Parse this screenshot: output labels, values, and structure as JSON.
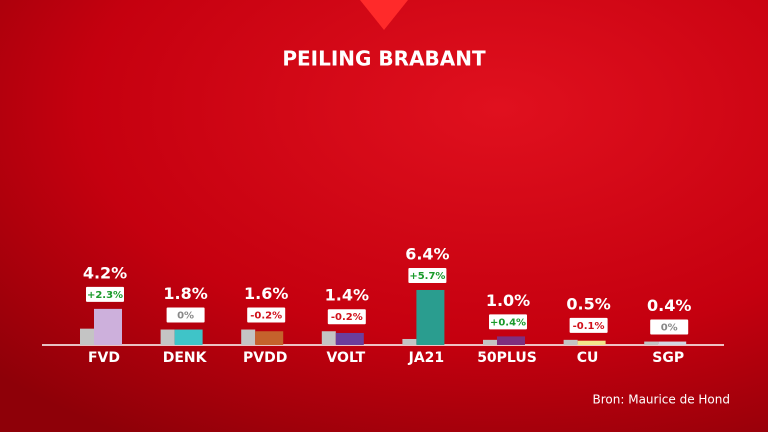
{
  "chart_data": {
    "type": "bar",
    "title": "PEILING BRABANT",
    "categories": [
      "FVD",
      "DENK",
      "PVDD",
      "VOLT",
      "JA21",
      "50PLUS",
      "CU",
      "SGP"
    ],
    "series": [
      {
        "color": "#c4c4c4",
        "values": [
          1.9,
          1.8,
          1.8,
          1.6,
          0.7,
          0.6,
          0.6,
          0.4
        ]
      },
      {
        "colors": [
          "#cdb0dc",
          "#3fc4c8",
          "#c5622c",
          "#6b3e9c",
          "#2a9d8f",
          "#7e2f7f",
          "#f3e68a",
          "#d4d6e2"
        ],
        "values": [
          4.2,
          1.8,
          1.6,
          1.4,
          6.4,
          1.0,
          0.5,
          0.4
        ],
        "value_labels": [
          "4.2%",
          "1.8%",
          "1.6%",
          "1.4%",
          "6.4%",
          "1.0%",
          "0.5%",
          "0.4%"
        ]
      }
    ],
    "changes": {
      "values": [
        2.3,
        0,
        -0.2,
        -0.2,
        5.7,
        0.4,
        -0.1,
        0
      ],
      "value_labels": [
        "+2.3%",
        "0%",
        "-0.2%",
        "-0.2%",
        "+5.7%",
        "+0.4%",
        "-0.1%",
        "0%"
      ]
    },
    "source": "Bron: Maurice de Hond"
  }
}
